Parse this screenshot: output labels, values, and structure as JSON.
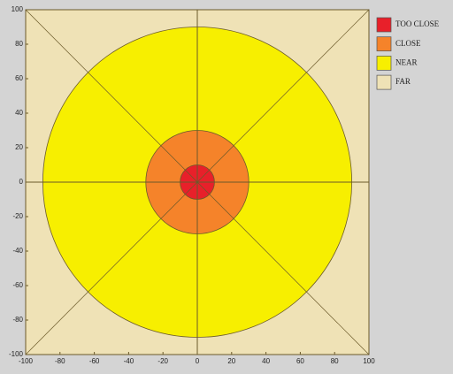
{
  "chart_data": {
    "type": "zones",
    "series": [
      {
        "name": "TOO CLOSE",
        "color": "#e8202a",
        "value": 10
      },
      {
        "name": "CLOSE",
        "color": "#f5832a",
        "value": 30
      },
      {
        "name": "NEAR",
        "color": "#f7ef00",
        "value": 90
      },
      {
        "name": "FAR",
        "color": "#efe2b6"
      }
    ],
    "xlim": [
      -100,
      100
    ],
    "ylim": [
      -100,
      100
    ],
    "xticks": [
      -100,
      -80,
      -60,
      -40,
      -20,
      0,
      20,
      40,
      60,
      80,
      100
    ],
    "yticks": [
      -100,
      -80,
      -60,
      -40,
      -20,
      0,
      20,
      40,
      60,
      80,
      100
    ],
    "legend": "right"
  }
}
